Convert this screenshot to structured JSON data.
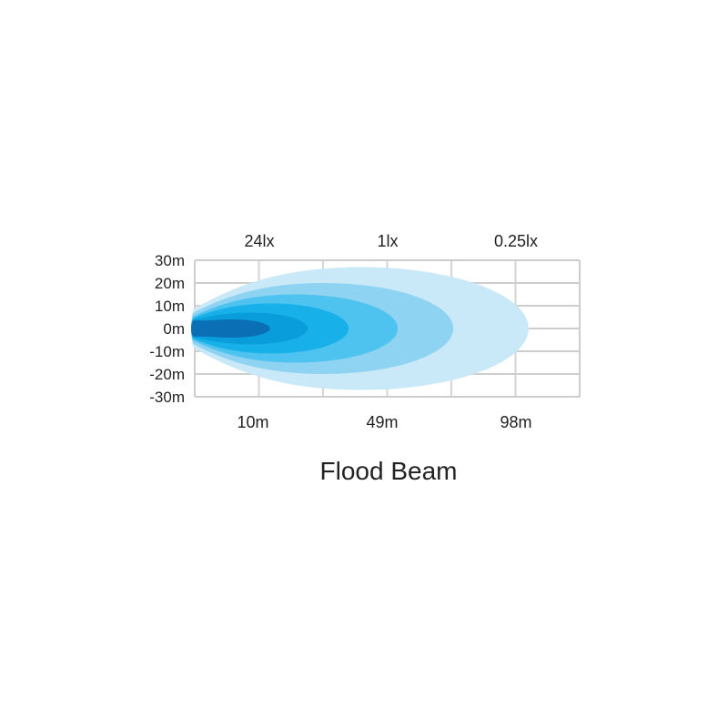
{
  "chart_data": {
    "type": "area",
    "title": "Flood Beam",
    "lux_labels": [
      "24lx",
      "1lx",
      "0.25lx"
    ],
    "distance_labels": [
      "10m",
      "49m",
      "98m"
    ],
    "y_ticks": [
      "30m",
      "20m",
      "10m",
      "0m",
      "-10m",
      "-20m",
      "-30m"
    ],
    "ylim": [
      -30,
      30
    ],
    "grid": true,
    "contours": [
      {
        "reach_m": 102,
        "half_width_m": 27,
        "color": "#c9e8f8"
      },
      {
        "reach_m": 79,
        "half_width_m": 20,
        "color": "#8fd3f3"
      },
      {
        "reach_m": 62,
        "half_width_m": 15,
        "color": "#4ec3ef"
      },
      {
        "reach_m": 47,
        "half_width_m": 11,
        "color": "#17b0e8"
      },
      {
        "reach_m": 34.5,
        "half_width_m": 7,
        "color": "#0a9ddc"
      },
      {
        "reach_m": 23,
        "half_width_m": 4,
        "color": "#0a6fb5"
      }
    ],
    "grid_color": "#c8c8c8"
  }
}
